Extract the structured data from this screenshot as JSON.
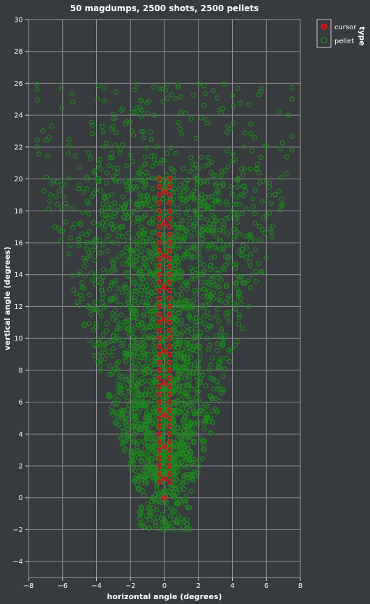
{
  "chart_data": {
    "type": "scatter",
    "title": "50 magdumps, 2500 shots, 2500 pellets",
    "xlabel": "horizontal angle (degrees)",
    "ylabel": "vertical angle (degrees)",
    "xlim": [
      -8,
      8
    ],
    "ylim": [
      -5,
      30
    ],
    "x_ticks": [
      -8,
      -6,
      -4,
      -2,
      0,
      2,
      4,
      6,
      8
    ],
    "y_ticks": [
      -4,
      -2,
      0,
      2,
      4,
      6,
      8,
      10,
      12,
      14,
      16,
      18,
      20,
      22,
      24,
      26,
      28,
      30
    ],
    "grid": true,
    "legend": {
      "title": "type",
      "placement": "top-right",
      "entries": [
        {
          "label": "cursor",
          "color": "#e41a1c"
        },
        {
          "label": "pellet",
          "color": "#1f8a1f"
        }
      ]
    },
    "series": [
      {
        "name": "cursor",
        "color": "#e41a1c",
        "points": [
          [
            0,
            0
          ],
          [
            -0.3,
            1.0
          ],
          [
            0.3,
            1.0
          ],
          [
            -0.3,
            1.5
          ],
          [
            0.3,
            1.5
          ],
          [
            -0.3,
            2.0
          ],
          [
            0.3,
            2.0
          ],
          [
            -0.3,
            2.5
          ],
          [
            0.3,
            2.5
          ],
          [
            -0.3,
            3.0
          ],
          [
            0.3,
            3.0
          ],
          [
            -0.3,
            3.5
          ],
          [
            0.3,
            3.5
          ],
          [
            -0.3,
            4.0
          ],
          [
            0.3,
            4.0
          ],
          [
            -0.3,
            4.5
          ],
          [
            0.3,
            4.5
          ],
          [
            -0.3,
            5.0
          ],
          [
            0.3,
            5.0
          ],
          [
            -0.3,
            5.5
          ],
          [
            0.3,
            5.5
          ],
          [
            -0.3,
            6.0
          ],
          [
            0.3,
            6.0
          ],
          [
            -0.3,
            6.5
          ],
          [
            0.3,
            6.5
          ],
          [
            -0.3,
            7.0
          ],
          [
            0.3,
            7.0
          ],
          [
            -0.3,
            7.5
          ],
          [
            0.3,
            7.5
          ],
          [
            -0.3,
            8.0
          ],
          [
            0.3,
            8.0
          ],
          [
            -0.3,
            8.5
          ],
          [
            0.3,
            8.5
          ],
          [
            -0.3,
            9.0
          ],
          [
            0.3,
            9.0
          ],
          [
            -0.3,
            9.5
          ],
          [
            0.3,
            9.5
          ],
          [
            -0.3,
            10.0
          ],
          [
            0.3,
            10.0
          ],
          [
            -0.3,
            10.5
          ],
          [
            0.3,
            10.5
          ],
          [
            -0.3,
            11.0
          ],
          [
            0.3,
            11.0
          ],
          [
            -0.3,
            11.5
          ],
          [
            0.3,
            11.5
          ],
          [
            -0.3,
            12.0
          ],
          [
            0.3,
            12.0
          ],
          [
            -0.3,
            12.5
          ],
          [
            0.3,
            12.5
          ],
          [
            -0.3,
            13.0
          ],
          [
            0.3,
            13.0
          ],
          [
            -0.3,
            13.5
          ],
          [
            0.3,
            13.5
          ],
          [
            -0.3,
            14.0
          ],
          [
            0.3,
            14.0
          ],
          [
            -0.3,
            14.5
          ],
          [
            0.3,
            14.5
          ],
          [
            -0.3,
            15.0
          ],
          [
            0.3,
            15.0
          ],
          [
            -0.3,
            15.5
          ],
          [
            0.3,
            15.5
          ],
          [
            -0.3,
            16.0
          ],
          [
            0.3,
            16.0
          ],
          [
            -0.3,
            16.5
          ],
          [
            0.3,
            16.5
          ],
          [
            -0.3,
            17.0
          ],
          [
            0.3,
            17.0
          ],
          [
            -0.3,
            17.5
          ],
          [
            0.3,
            17.5
          ],
          [
            -0.3,
            18.0
          ],
          [
            0.3,
            18.0
          ],
          [
            -0.3,
            18.5
          ],
          [
            0.3,
            18.5
          ],
          [
            -0.3,
            19.0
          ],
          [
            0.3,
            19.0
          ],
          [
            -0.3,
            19.5
          ],
          [
            0.3,
            19.5
          ],
          [
            -0.3,
            20.0
          ],
          [
            0.3,
            20.0
          ],
          [
            0,
            1.2
          ],
          [
            0,
            3.2
          ],
          [
            0,
            5.2
          ],
          [
            0,
            7.2
          ],
          [
            0,
            9.2
          ],
          [
            0,
            11.2
          ],
          [
            0,
            13.2
          ],
          [
            0,
            15.2
          ],
          [
            0,
            17.2
          ],
          [
            0,
            19.2
          ]
        ]
      },
      {
        "name": "pellet",
        "color": "#1f8a1f",
        "distribution": {
          "count": 2500,
          "x_sd_base": 1.0,
          "x_sd_growth": 0.13,
          "x_max_base": 1.5,
          "x_max_growth": 0.3,
          "y_min": -2.2,
          "y_max": 26.2
        }
      }
    ]
  }
}
